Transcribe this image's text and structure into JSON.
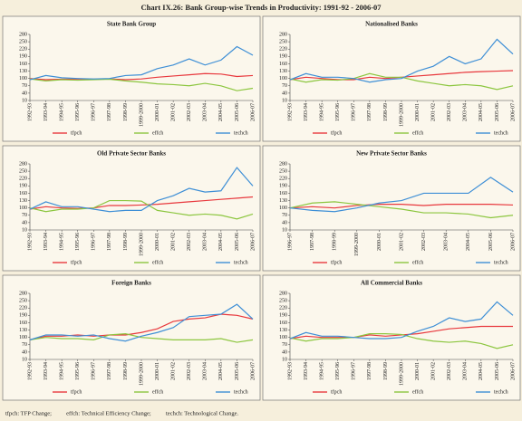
{
  "title": "Chart IX.26: Bank Group-wise Trends in Productivity: 1991-92 - 2006-07",
  "footnote": "tfpch: TFP Change;          effch: Technical Efficiency Change;          techch: Technological Change.",
  "chart_data": [
    {
      "type": "line",
      "title": "State Bank Group",
      "categories": [
        "1992-93",
        "1993-94",
        "1994-95",
        "1995-96",
        "1996-97",
        "1997-98",
        "1998-99",
        "1999-2000",
        "2000-01",
        "2001-02",
        "2002-03",
        "2003-04",
        "2004-05",
        "2005-06",
        "2006-07"
      ],
      "series": [
        {
          "name": "tfpch",
          "color": "#e8383d",
          "values": [
            100,
            95,
            97,
            98,
            97,
            98,
            95,
            98,
            105,
            110,
            115,
            120,
            118,
            108,
            112
          ]
        },
        {
          "name": "effch",
          "color": "#8cc63f",
          "values": [
            98,
            90,
            95,
            93,
            95,
            97,
            90,
            85,
            78,
            75,
            70,
            80,
            70,
            50,
            60
          ]
        },
        {
          "name": "techch",
          "color": "#3e8fd6",
          "values": [
            95,
            112,
            103,
            100,
            98,
            100,
            112,
            115,
            140,
            155,
            180,
            155,
            175,
            230,
            195
          ]
        }
      ],
      "ylim": [
        10,
        280
      ],
      "yticks": [
        10,
        40,
        70,
        100,
        130,
        160,
        190,
        220,
        250,
        280
      ],
      "legend": "bottom"
    },
    {
      "type": "line",
      "title": "Nationalised Banks",
      "categories": [
        "1992-93",
        "1993-94",
        "1994-95",
        "1995-96",
        "1996-97",
        "1997-98",
        "1998-99",
        "1999-2000",
        "2000-01",
        "2001-02",
        "2002-03",
        "2003-04",
        "2004-05",
        "2005-06",
        "2006-07"
      ],
      "series": [
        {
          "name": "tfpch",
          "color": "#e8383d",
          "values": [
            95,
            105,
            100,
            95,
            95,
            105,
            100,
            105,
            110,
            115,
            120,
            125,
            128,
            130,
            132
          ]
        },
        {
          "name": "effch",
          "color": "#8cc63f",
          "values": [
            98,
            85,
            95,
            93,
            100,
            120,
            105,
            105,
            90,
            80,
            70,
            75,
            70,
            55,
            70
          ]
        },
        {
          "name": "techch",
          "color": "#3e8fd6",
          "values": [
            95,
            120,
            105,
            105,
            100,
            85,
            95,
            100,
            130,
            150,
            190,
            160,
            180,
            260,
            200
          ]
        }
      ],
      "ylim": [
        10,
        280
      ],
      "yticks": [
        10,
        40,
        70,
        100,
        130,
        160,
        190,
        220,
        250,
        280
      ],
      "legend": "bottom"
    },
    {
      "type": "line",
      "title": "Old Private Sector Banks",
      "categories": [
        "1992-93",
        "1993-94",
        "1994-95",
        "1995-96",
        "1996-97",
        "1997-98",
        "1998-99",
        "1999-2000",
        "2000-01",
        "2001-02",
        "2002-03",
        "2003-04",
        "2004-05",
        "2005-06",
        "2006-07"
      ],
      "series": [
        {
          "name": "tfpch",
          "color": "#e8383d",
          "values": [
            95,
            105,
            100,
            98,
            100,
            110,
            110,
            112,
            115,
            120,
            125,
            130,
            135,
            140,
            145
          ]
        },
        {
          "name": "effch",
          "color": "#8cc63f",
          "values": [
            100,
            85,
            95,
            95,
            100,
            130,
            130,
            128,
            90,
            80,
            70,
            75,
            70,
            55,
            75
          ]
        },
        {
          "name": "techch",
          "color": "#3e8fd6",
          "values": [
            95,
            125,
            105,
            105,
            95,
            85,
            90,
            90,
            130,
            150,
            180,
            165,
            170,
            265,
            190
          ]
        }
      ],
      "ylim": [
        10,
        280
      ],
      "yticks": [
        10,
        40,
        70,
        100,
        130,
        160,
        190,
        220,
        250,
        280
      ],
      "legend": "bottom"
    },
    {
      "type": "line",
      "title": "New Private Sector Banks",
      "categories": [
        "1996-97",
        "1997-98",
        "1998-99",
        "1999-2000",
        "2000-01",
        "2001-02",
        "2002-03",
        "2003-04",
        "2004-05",
        "2005-06",
        "2006-07"
      ],
      "series": [
        {
          "name": "tfpch",
          "color": "#e8383d",
          "values": [
            100,
            105,
            100,
            110,
            115,
            115,
            110,
            115,
            115,
            115,
            112
          ]
        },
        {
          "name": "effch",
          "color": "#8cc63f",
          "values": [
            100,
            120,
            125,
            115,
            105,
            95,
            80,
            80,
            75,
            60,
            70
          ]
        },
        {
          "name": "techch",
          "color": "#3e8fd6",
          "values": [
            100,
            90,
            85,
            100,
            120,
            130,
            160,
            160,
            160,
            225,
            165
          ]
        }
      ],
      "ylim": [
        10,
        280
      ],
      "yticks": [
        10,
        40,
        70,
        100,
        130,
        160,
        190,
        220,
        250,
        280
      ],
      "legend": "bottom"
    },
    {
      "type": "line",
      "title": "Foreign Banks",
      "categories": [
        "1992-93",
        "1993-94",
        "1994-95",
        "1995-96",
        "1996-97",
        "1997-98",
        "1998-99",
        "1999-2000",
        "2000-01",
        "2001-02",
        "2002-03",
        "2003-04",
        "2004-05",
        "2005-06",
        "2006-07"
      ],
      "series": [
        {
          "name": "tfpch",
          "color": "#e8383d",
          "values": [
            90,
            105,
            105,
            110,
            105,
            110,
            110,
            120,
            135,
            165,
            175,
            180,
            195,
            190,
            175
          ]
        },
        {
          "name": "effch",
          "color": "#8cc63f",
          "values": [
            90,
            100,
            95,
            95,
            90,
            110,
            115,
            100,
            95,
            90,
            90,
            90,
            95,
            80,
            90
          ]
        },
        {
          "name": "techch",
          "color": "#3e8fd6",
          "values": [
            90,
            110,
            110,
            105,
            110,
            95,
            85,
            105,
            120,
            140,
            185,
            190,
            195,
            235,
            175
          ]
        }
      ],
      "ylim": [
        10,
        280
      ],
      "yticks": [
        10,
        40,
        70,
        100,
        130,
        160,
        190,
        220,
        250,
        280
      ],
      "legend": "bottom"
    },
    {
      "type": "line",
      "title": "All Commercial Banks",
      "categories": [
        "1992-93",
        "1993-94",
        "1994-95",
        "1995-96",
        "1996-97",
        "1997-98",
        "1998-99",
        "1999-2000",
        "2000-01",
        "2001-02",
        "2002-03",
        "2003-04",
        "2004-05",
        "2005-06",
        "2006-07"
      ],
      "series": [
        {
          "name": "tfpch",
          "color": "#e8383d",
          "values": [
            95,
            105,
            100,
            100,
            100,
            110,
            105,
            110,
            115,
            125,
            135,
            140,
            145,
            145,
            145
          ]
        },
        {
          "name": "effch",
          "color": "#8cc63f",
          "values": [
            98,
            85,
            95,
            95,
            100,
            115,
            115,
            112,
            95,
            85,
            80,
            85,
            75,
            55,
            70
          ]
        },
        {
          "name": "techch",
          "color": "#3e8fd6",
          "values": [
            95,
            120,
            105,
            105,
            100,
            95,
            95,
            100,
            125,
            145,
            180,
            165,
            175,
            245,
            190
          ]
        }
      ],
      "ylim": [
        10,
        280
      ],
      "yticks": [
        10,
        40,
        70,
        100,
        130,
        160,
        190,
        220,
        250,
        280
      ],
      "legend": "bottom"
    }
  ]
}
